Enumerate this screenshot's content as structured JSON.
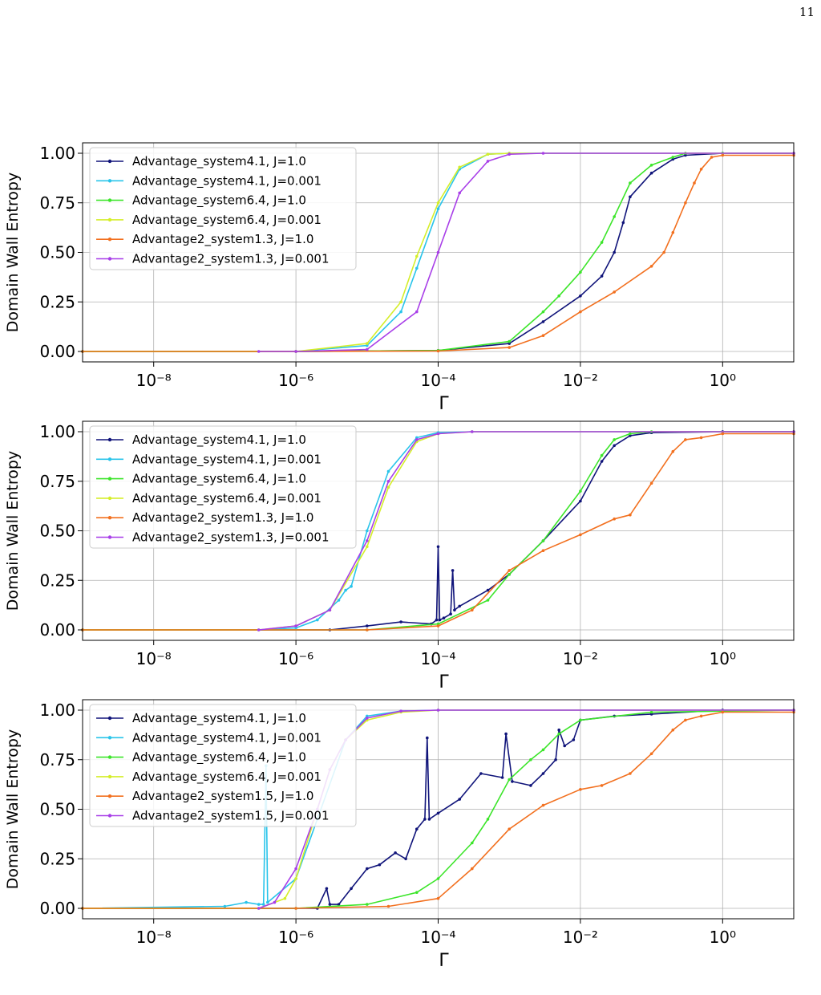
{
  "page": {
    "number": "11"
  },
  "chart_data": [
    {
      "type": "line",
      "xscale": "log",
      "xlabel": "Γ",
      "ylabel": "Domain Wall Entropy",
      "xlim": [
        1e-09,
        10
      ],
      "ylim": [
        0.0,
        1.0
      ],
      "xticks": [
        "10⁻⁸",
        "10⁻⁶",
        "10⁻⁴",
        "10⁻²",
        "10⁰"
      ],
      "yticks": [
        "0.00",
        "0.25",
        "0.50",
        "0.75",
        "1.00"
      ],
      "grid": true,
      "legend_position": "upper-left",
      "series": [
        {
          "name": "Advantage_system4.1, J=1.0",
          "color": "#10147a",
          "x": [
            1e-09,
            1e-06,
            0.0001,
            0.001,
            0.003,
            0.01,
            0.02,
            0.03,
            0.04,
            0.05,
            0.1,
            0.2,
            0.3,
            1,
            10
          ],
          "y": [
            0,
            0,
            0.005,
            0.04,
            0.15,
            0.28,
            0.38,
            0.5,
            0.65,
            0.78,
            0.9,
            0.97,
            0.99,
            1.0,
            1.0
          ]
        },
        {
          "name": "Advantage_system4.1, J=0.001",
          "color": "#29c4ea",
          "x": [
            1e-09,
            1e-06,
            1e-05,
            3e-05,
            5e-05,
            0.0001,
            0.0002,
            0.0005,
            0.001,
            10
          ],
          "y": [
            0,
            0,
            0.03,
            0.2,
            0.42,
            0.72,
            0.92,
            0.995,
            1.0,
            1.0
          ]
        },
        {
          "name": "Advantage_system6.4, J=1.0",
          "color": "#3ce52a",
          "x": [
            1e-09,
            1e-06,
            0.0001,
            0.001,
            0.003,
            0.005,
            0.01,
            0.02,
            0.03,
            0.05,
            0.1,
            0.2,
            0.3,
            1,
            10
          ],
          "y": [
            0,
            0,
            0.005,
            0.05,
            0.2,
            0.28,
            0.4,
            0.55,
            0.68,
            0.85,
            0.94,
            0.98,
            1.0,
            1.0,
            1.0
          ]
        },
        {
          "name": "Advantage_system6.4, J=0.001",
          "color": "#d5ee2a",
          "x": [
            1e-09,
            1e-06,
            1e-05,
            3e-05,
            5e-05,
            0.0001,
            0.0002,
            0.0005,
            0.001,
            10
          ],
          "y": [
            0,
            0,
            0.04,
            0.25,
            0.48,
            0.75,
            0.93,
            0.995,
            1.0,
            1.0
          ]
        },
        {
          "name": "Advantage2_system1.3, J=1.0",
          "color": "#f2701f",
          "x": [
            1e-09,
            1e-06,
            0.0001,
            0.001,
            0.003,
            0.01,
            0.03,
            0.1,
            0.15,
            0.2,
            0.3,
            0.4,
            0.5,
            0.7,
            1,
            10
          ],
          "y": [
            0,
            0,
            0.002,
            0.02,
            0.08,
            0.2,
            0.3,
            0.43,
            0.5,
            0.6,
            0.75,
            0.85,
            0.92,
            0.98,
            0.99,
            0.99
          ]
        },
        {
          "name": "Advantage2_system1.3, J=0.001",
          "color": "#a83ee8",
          "x": [
            3e-07,
            1e-06,
            1e-05,
            5e-05,
            0.0001,
            0.0002,
            0.0005,
            0.001,
            0.003,
            10
          ],
          "y": [
            0,
            0,
            0.01,
            0.2,
            0.5,
            0.8,
            0.96,
            0.995,
            1.0,
            1.0
          ]
        }
      ]
    },
    {
      "type": "line",
      "xscale": "log",
      "xlabel": "Γ",
      "ylabel": "Domain Wall Entropy",
      "xlim": [
        1e-09,
        10
      ],
      "ylim": [
        0.0,
        1.0
      ],
      "xticks": [
        "10⁻⁸",
        "10⁻⁶",
        "10⁻⁴",
        "10⁻²",
        "10⁰"
      ],
      "yticks": [
        "0.00",
        "0.25",
        "0.50",
        "0.75",
        "1.00"
      ],
      "grid": true,
      "legend_position": "upper-left",
      "series": [
        {
          "name": "Advantage_system4.1, J=1.0",
          "color": "#10147a",
          "x": [
            1e-09,
            3e-06,
            1e-05,
            3e-05,
            8e-05,
            9.5e-05,
            0.0001,
            0.000105,
            0.00012,
            0.00015,
            0.00016,
            0.00017,
            0.0002,
            0.0005,
            0.001,
            0.003,
            0.01,
            0.02,
            0.03,
            0.05,
            0.1,
            1,
            10
          ],
          "y": [
            0,
            0,
            0.02,
            0.04,
            0.03,
            0.05,
            0.42,
            0.05,
            0.06,
            0.08,
            0.3,
            0.1,
            0.12,
            0.2,
            0.28,
            0.45,
            0.65,
            0.85,
            0.93,
            0.98,
            0.995,
            1.0,
            1.0
          ]
        },
        {
          "name": "Advantage_system4.1, J=0.001",
          "color": "#29c4ea",
          "x": [
            1e-09,
            3e-07,
            1e-06,
            2e-06,
            4e-06,
            5e-06,
            6e-06,
            1e-05,
            2e-05,
            5e-05,
            0.0001,
            0.0003,
            10
          ],
          "y": [
            0,
            0,
            0.01,
            0.05,
            0.15,
            0.2,
            0.22,
            0.5,
            0.8,
            0.97,
            0.995,
            1.0,
            1.0
          ]
        },
        {
          "name": "Advantage_system6.4, J=1.0",
          "color": "#3ce52a",
          "x": [
            1e-09,
            1e-05,
            0.0001,
            0.0005,
            0.001,
            0.003,
            0.01,
            0.02,
            0.03,
            0.05,
            0.1,
            10
          ],
          "y": [
            0,
            0,
            0.03,
            0.15,
            0.28,
            0.45,
            0.7,
            0.88,
            0.96,
            0.99,
            1.0,
            1.0
          ]
        },
        {
          "name": "Advantage_system6.4, J=0.001",
          "color": "#d5ee2a",
          "x": [
            1e-09,
            3e-07,
            1e-06,
            3e-06,
            1e-05,
            2e-05,
            5e-05,
            0.0001,
            0.0003,
            10
          ],
          "y": [
            0,
            0,
            0.02,
            0.1,
            0.42,
            0.72,
            0.95,
            0.99,
            1.0,
            1.0
          ]
        },
        {
          "name": "Advantage2_system1.3, J=1.0",
          "color": "#f2701f",
          "x": [
            1e-09,
            1e-05,
            0.0001,
            0.0003,
            0.001,
            0.003,
            0.01,
            0.03,
            0.05,
            0.1,
            0.2,
            0.3,
            0.5,
            1,
            10
          ],
          "y": [
            0,
            0,
            0.02,
            0.1,
            0.3,
            0.4,
            0.48,
            0.56,
            0.58,
            0.74,
            0.9,
            0.96,
            0.97,
            0.99,
            0.99
          ]
        },
        {
          "name": "Advantage2_system1.3, J=0.001",
          "color": "#a83ee8",
          "x": [
            3e-07,
            1e-06,
            3e-06,
            1e-05,
            2e-05,
            5e-05,
            0.0001,
            0.0003,
            10
          ],
          "y": [
            0,
            0.02,
            0.1,
            0.45,
            0.75,
            0.96,
            0.99,
            1.0,
            1.0
          ]
        }
      ]
    },
    {
      "type": "line",
      "xscale": "log",
      "xlabel": "Γ",
      "ylabel": "Domain Wall Entropy",
      "xlim": [
        1e-09,
        10
      ],
      "ylim": [
        0.0,
        1.0
      ],
      "xticks": [
        "10⁻⁸",
        "10⁻⁶",
        "10⁻⁴",
        "10⁻²",
        "10⁰"
      ],
      "yticks": [
        "0.00",
        "0.25",
        "0.50",
        "0.75",
        "1.00"
      ],
      "grid": true,
      "legend_position": "upper-left",
      "series": [
        {
          "name": "Advantage_system4.1, J=1.0",
          "color": "#10147a",
          "x": [
            1e-09,
            2e-06,
            2.7e-06,
            3e-06,
            4e-06,
            6e-06,
            1e-05,
            1.5e-05,
            2.5e-05,
            3.5e-05,
            5e-05,
            6.5e-05,
            7e-05,
            7.5e-05,
            0.0001,
            0.0002,
            0.0004,
            0.0008,
            0.0009,
            0.0011,
            0.002,
            0.003,
            0.0045,
            0.005,
            0.006,
            0.008,
            0.01,
            0.03,
            0.1,
            1,
            10
          ],
          "y": [
            0,
            0,
            0.1,
            0.02,
            0.02,
            0.1,
            0.2,
            0.22,
            0.28,
            0.25,
            0.4,
            0.45,
            0.86,
            0.45,
            0.48,
            0.55,
            0.68,
            0.66,
            0.88,
            0.64,
            0.62,
            0.68,
            0.75,
            0.9,
            0.82,
            0.85,
            0.95,
            0.97,
            0.98,
            1.0,
            1.0
          ]
        },
        {
          "name": "Advantage_system4.1, J=0.001",
          "color": "#29c4ea",
          "x": [
            1e-09,
            1e-07,
            2e-07,
            3e-07,
            3.5e-07,
            3.8e-07,
            4e-07,
            1e-06,
            2e-06,
            5e-06,
            1e-05,
            3e-05,
            0.0001,
            10
          ],
          "y": [
            0,
            0.01,
            0.03,
            0.02,
            0.02,
            0.72,
            0.03,
            0.15,
            0.45,
            0.85,
            0.97,
            0.995,
            1.0,
            1.0
          ]
        },
        {
          "name": "Advantage_system6.4, J=1.0",
          "color": "#3ce52a",
          "x": [
            1e-09,
            1e-06,
            1e-05,
            5e-05,
            0.0001,
            0.0003,
            0.0005,
            0.001,
            0.002,
            0.003,
            0.005,
            0.01,
            0.1,
            10
          ],
          "y": [
            0,
            0,
            0.02,
            0.08,
            0.15,
            0.33,
            0.45,
            0.65,
            0.75,
            0.8,
            0.88,
            0.95,
            0.99,
            1.0
          ]
        },
        {
          "name": "Advantage_system6.4, J=0.001",
          "color": "#d5ee2a",
          "x": [
            1e-09,
            3e-07,
            7e-07,
            1e-06,
            2e-06,
            3e-06,
            5e-06,
            1e-05,
            3e-05,
            0.0001,
            10
          ],
          "y": [
            0,
            0,
            0.05,
            0.15,
            0.5,
            0.7,
            0.85,
            0.95,
            0.99,
            1.0,
            1.0
          ]
        },
        {
          "name": "Advantage2_system1.5, J=1.0",
          "color": "#f2701f",
          "x": [
            1e-09,
            1e-06,
            2e-05,
            0.0001,
            0.0003,
            0.001,
            0.003,
            0.01,
            0.02,
            0.05,
            0.1,
            0.2,
            0.3,
            0.5,
            1,
            10
          ],
          "y": [
            0,
            0,
            0.01,
            0.05,
            0.2,
            0.4,
            0.52,
            0.6,
            0.62,
            0.68,
            0.78,
            0.9,
            0.95,
            0.97,
            0.99,
            0.99
          ]
        },
        {
          "name": "Advantage2_system1.5, J=0.001",
          "color": "#a83ee8",
          "x": [
            3e-07,
            5e-07,
            1e-06,
            2e-06,
            3e-06,
            5e-06,
            1e-05,
            3e-05,
            0.0001,
            10
          ],
          "y": [
            0,
            0.03,
            0.2,
            0.5,
            0.7,
            0.85,
            0.96,
            0.995,
            1.0,
            1.0
          ]
        }
      ]
    }
  ]
}
